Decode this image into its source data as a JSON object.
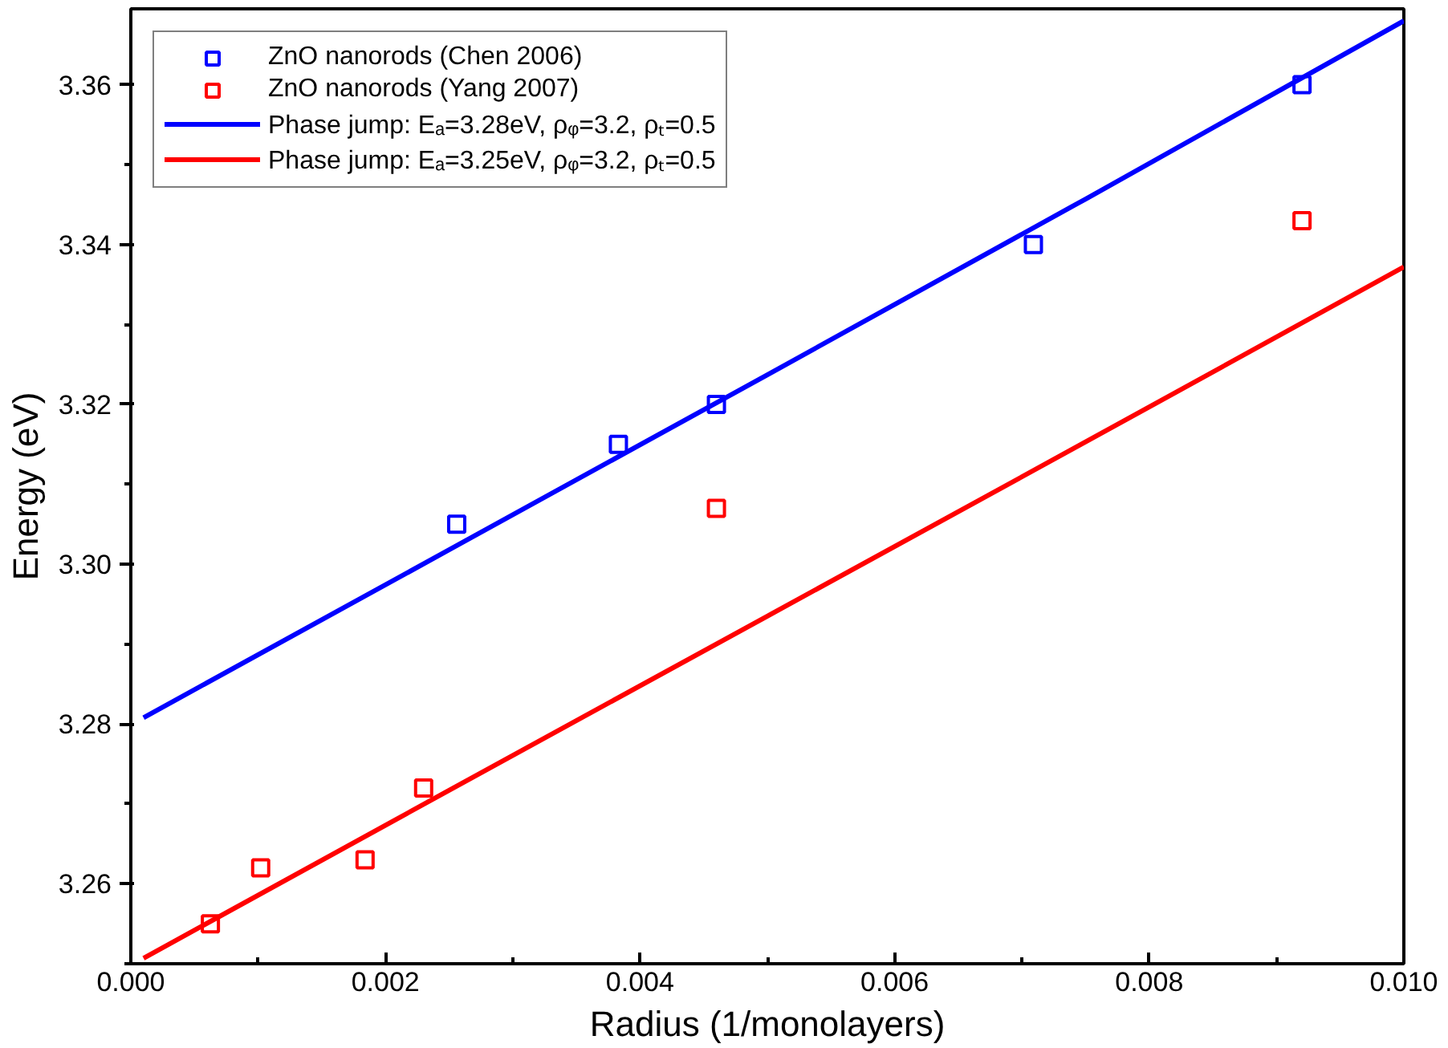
{
  "chart_data": {
    "type": "scatter",
    "xlabel": "Radius (1/monolayers)",
    "ylabel": "Energy (eV)",
    "xlim": [
      0,
      0.01
    ],
    "ylim": [
      3.25,
      3.3695
    ],
    "xticks": [
      {
        "value": 0,
        "label": "0.000"
      },
      {
        "value": 0.002,
        "label": "0.002"
      },
      {
        "value": 0.004,
        "label": "0.004"
      },
      {
        "value": 0.006,
        "label": "0.006"
      },
      {
        "value": 0.008,
        "label": "0.008"
      },
      {
        "value": 0.01,
        "label": "0.010"
      }
    ],
    "yticks": [
      {
        "value": 3.26,
        "label": "3.26"
      },
      {
        "value": 3.28,
        "label": "3.28"
      },
      {
        "value": 3.3,
        "label": "3.30"
      },
      {
        "value": 3.32,
        "label": "3.32"
      },
      {
        "value": 3.34,
        "label": "3.34"
      },
      {
        "value": 3.36,
        "label": "3.36"
      }
    ],
    "grid": false,
    "legend": "top left",
    "series": [
      {
        "name": "ZnO nanorods (Chen 2006)",
        "marker": "square",
        "color": "#0000ff",
        "x": [
          0.00256,
          0.00383,
          0.0046,
          0.00709,
          0.0092
        ],
        "values": [
          3.305,
          3.315,
          3.32,
          3.34,
          3.36
        ]
      },
      {
        "name": "ZnO nanorods (Yang 2007)",
        "marker": "square",
        "color": "#ff0000",
        "x": [
          0.000625,
          0.00102,
          0.00184,
          0.0023,
          0.0046,
          0.0092
        ],
        "values": [
          3.255,
          3.262,
          3.263,
          3.272,
          3.307,
          3.343
        ]
      },
      {
        "name": "Phase jump: Eₐ=3.28eV, ρᵩ=3.2, ρₜ=0.5",
        "type": "line",
        "color": "#0000ff",
        "x": [
          0.0001,
          0.0025,
          0.005,
          0.0075,
          0.01
        ],
        "values": [
          3.2808,
          3.3018,
          3.3237,
          3.3457,
          3.368
        ]
      },
      {
        "name": "Phase jump: Eₐ=3.25eV, ρᵩ=3.2, ρₜ=0.5",
        "type": "line",
        "color": "#ff0000",
        "x": [
          0.0001,
          0.0025,
          0.005,
          0.0075,
          0.01
        ],
        "values": [
          3.2507,
          3.2717,
          3.2935,
          3.3153,
          3.3372
        ]
      }
    ]
  }
}
